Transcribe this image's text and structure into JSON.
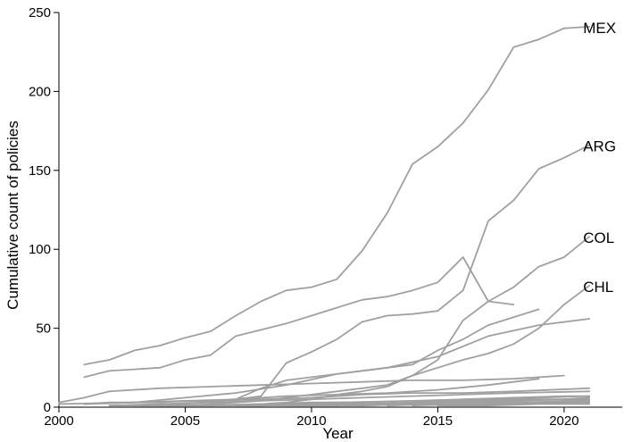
{
  "chart_data": {
    "type": "line",
    "title": "",
    "xlabel": "Year",
    "ylabel": "Cumulative count of policies",
    "xlim": [
      2000,
      2022.3
    ],
    "ylim": [
      0,
      250
    ],
    "x_ticks": [
      2000,
      2005,
      2010,
      2015,
      2020
    ],
    "y_ticks": [
      0,
      50,
      100,
      150,
      200,
      250
    ],
    "grid": false,
    "legend": "none",
    "line_color": "#a0a0a0",
    "series": [
      {
        "name": "MEX",
        "x": [
          2001,
          2002,
          2003,
          2004,
          2005,
          2006,
          2007,
          2008,
          2009,
          2010,
          2011,
          2012,
          2013,
          2014,
          2015,
          2016,
          2017,
          2018,
          2019,
          2020,
          2021
        ],
        "y": [
          27,
          30,
          36,
          39,
          44,
          48,
          58,
          67,
          74,
          76,
          81,
          99,
          123,
          154,
          165,
          180,
          201,
          228,
          233,
          240,
          241
        ]
      },
      {
        "name": "ARG",
        "x": [
          2001,
          2002,
          2003,
          2004,
          2005,
          2006,
          2007,
          2008,
          2009,
          2010,
          2011,
          2012,
          2013,
          2014,
          2015,
          2016,
          2017,
          2018,
          2019,
          2020,
          2021
        ],
        "y": [
          2,
          3,
          3,
          3,
          4,
          4,
          5,
          7,
          28,
          35,
          43,
          54,
          58,
          59,
          61,
          74,
          118,
          131,
          151,
          158,
          166
        ]
      },
      {
        "name": "COL",
        "x": [
          2004,
          2005,
          2006,
          2007,
          2008,
          2009,
          2010,
          2011,
          2012,
          2013,
          2014,
          2015,
          2016,
          2017,
          2018,
          2019,
          2020,
          2021
        ],
        "y": [
          1,
          1,
          2,
          3,
          4,
          6,
          8,
          10,
          12,
          14,
          20,
          30,
          55,
          67,
          76,
          89,
          95,
          108
        ]
      },
      {
        "name": "CHL",
        "x": [
          2007,
          2008,
          2009,
          2010,
          2011,
          2012,
          2013,
          2014,
          2015,
          2016,
          2017,
          2018,
          2019,
          2020,
          2021
        ],
        "y": [
          1,
          2,
          3,
          5,
          8,
          10,
          13,
          20,
          25,
          30,
          34,
          40,
          50,
          65,
          77
        ]
      },
      {
        "name": "",
        "x": [
          2001,
          2002,
          2003,
          2004,
          2005,
          2006,
          2007,
          2008,
          2009,
          2010,
          2011,
          2012,
          2013,
          2014,
          2015,
          2016,
          2017,
          2018
        ],
        "y": [
          19,
          23,
          24,
          25,
          30,
          33,
          45,
          49,
          53,
          58,
          63,
          68,
          70,
          74,
          79,
          95,
          67,
          65
        ]
      },
      {
        "name": "",
        "x": [
          2001,
          2003,
          2005,
          2007,
          2009,
          2011,
          2013,
          2015,
          2017,
          2019,
          2021
        ],
        "y": [
          2,
          3,
          6,
          9,
          14,
          21,
          25,
          32,
          45,
          52,
          56
        ]
      },
      {
        "name": "",
        "x": [
          2000,
          2001,
          2002,
          2004,
          2006,
          2008,
          2010,
          2012,
          2014,
          2016,
          2018,
          2020
        ],
        "y": [
          3,
          6,
          10,
          12,
          13,
          14,
          15,
          16,
          17,
          17,
          18,
          20
        ]
      },
      {
        "name": "",
        "x": [
          2003,
          2005,
          2007,
          2008,
          2009,
          2010,
          2012,
          2014,
          2015,
          2016,
          2017,
          2019
        ],
        "y": [
          1,
          2,
          5,
          12,
          17,
          19,
          23,
          27,
          36,
          43,
          52,
          62
        ]
      },
      {
        "name": "",
        "x": [
          2000,
          2003,
          2006,
          2008,
          2010,
          2012,
          2014,
          2016,
          2018,
          2021
        ],
        "y": [
          2,
          3,
          4,
          5,
          6,
          8,
          9,
          9,
          10,
          12
        ]
      },
      {
        "name": "",
        "x": [
          2002,
          2004,
          2006,
          2008,
          2010,
          2012,
          2014,
          2016,
          2018,
          2021
        ],
        "y": [
          1,
          2,
          3,
          4,
          5,
          6,
          7,
          8,
          9,
          10
        ]
      },
      {
        "name": "",
        "x": [
          2001,
          2003,
          2005,
          2007,
          2009,
          2011,
          2013,
          2015,
          2017,
          2019
        ],
        "y": [
          2,
          3,
          4,
          5,
          7,
          8,
          9,
          11,
          14,
          18
        ]
      },
      {
        "name": "",
        "x": [
          2006,
          2008,
          2010,
          2012,
          2014,
          2016,
          2018,
          2020,
          2021
        ],
        "y": [
          1,
          2,
          3,
          3,
          4,
          5,
          6,
          7,
          7
        ]
      },
      {
        "name": "",
        "x": [
          2008,
          2010,
          2012,
          2014,
          2016,
          2018,
          2020,
          2021
        ],
        "y": [
          1,
          2,
          2,
          3,
          4,
          5,
          5,
          6
        ]
      },
      {
        "name": "",
        "x": [
          2009,
          2011,
          2013,
          2015,
          2017,
          2019,
          2021
        ],
        "y": [
          1,
          1,
          2,
          2,
          3,
          3,
          4
        ]
      },
      {
        "name": "",
        "x": [
          2003,
          2006,
          2009,
          2012,
          2015,
          2018,
          2021
        ],
        "y": [
          1,
          1,
          2,
          2,
          3,
          3,
          4
        ]
      },
      {
        "name": "",
        "x": [
          2011,
          2013,
          2015,
          2017,
          2019,
          2021
        ],
        "y": [
          1,
          2,
          4,
          5,
          6,
          7
        ]
      },
      {
        "name": "",
        "x": [
          2012,
          2014,
          2016,
          2018,
          2020,
          2021
        ],
        "y": [
          1,
          2,
          3,
          4,
          5,
          6
        ]
      },
      {
        "name": "",
        "x": [
          2010,
          2012,
          2014,
          2016,
          2018,
          2020,
          2021
        ],
        "y": [
          1,
          1,
          2,
          2,
          3,
          3,
          3
        ]
      },
      {
        "name": "",
        "x": [
          2005,
          2008,
          2011,
          2014,
          2017,
          2021
        ],
        "y": [
          1,
          2,
          3,
          4,
          4,
          5
        ]
      },
      {
        "name": "",
        "x": [
          2007,
          2010,
          2013,
          2016,
          2019,
          2021
        ],
        "y": [
          1,
          1,
          2,
          3,
          3,
          4
        ]
      },
      {
        "name": "",
        "x": [
          2013,
          2015,
          2017,
          2019,
          2021
        ],
        "y": [
          1,
          2,
          2,
          3,
          3
        ]
      },
      {
        "name": "",
        "x": [
          2015,
          2017,
          2019,
          2021
        ],
        "y": [
          1,
          1,
          2,
          2
        ]
      },
      {
        "name": "",
        "x": [
          2002,
          2005,
          2008,
          2011,
          2014,
          2017,
          2020
        ],
        "y": [
          1,
          1,
          1,
          2,
          2,
          2,
          3
        ]
      },
      {
        "name": "",
        "x": [
          2014,
          2016,
          2018,
          2020,
          2021
        ],
        "y": [
          1,
          2,
          2,
          3,
          3
        ]
      }
    ]
  }
}
